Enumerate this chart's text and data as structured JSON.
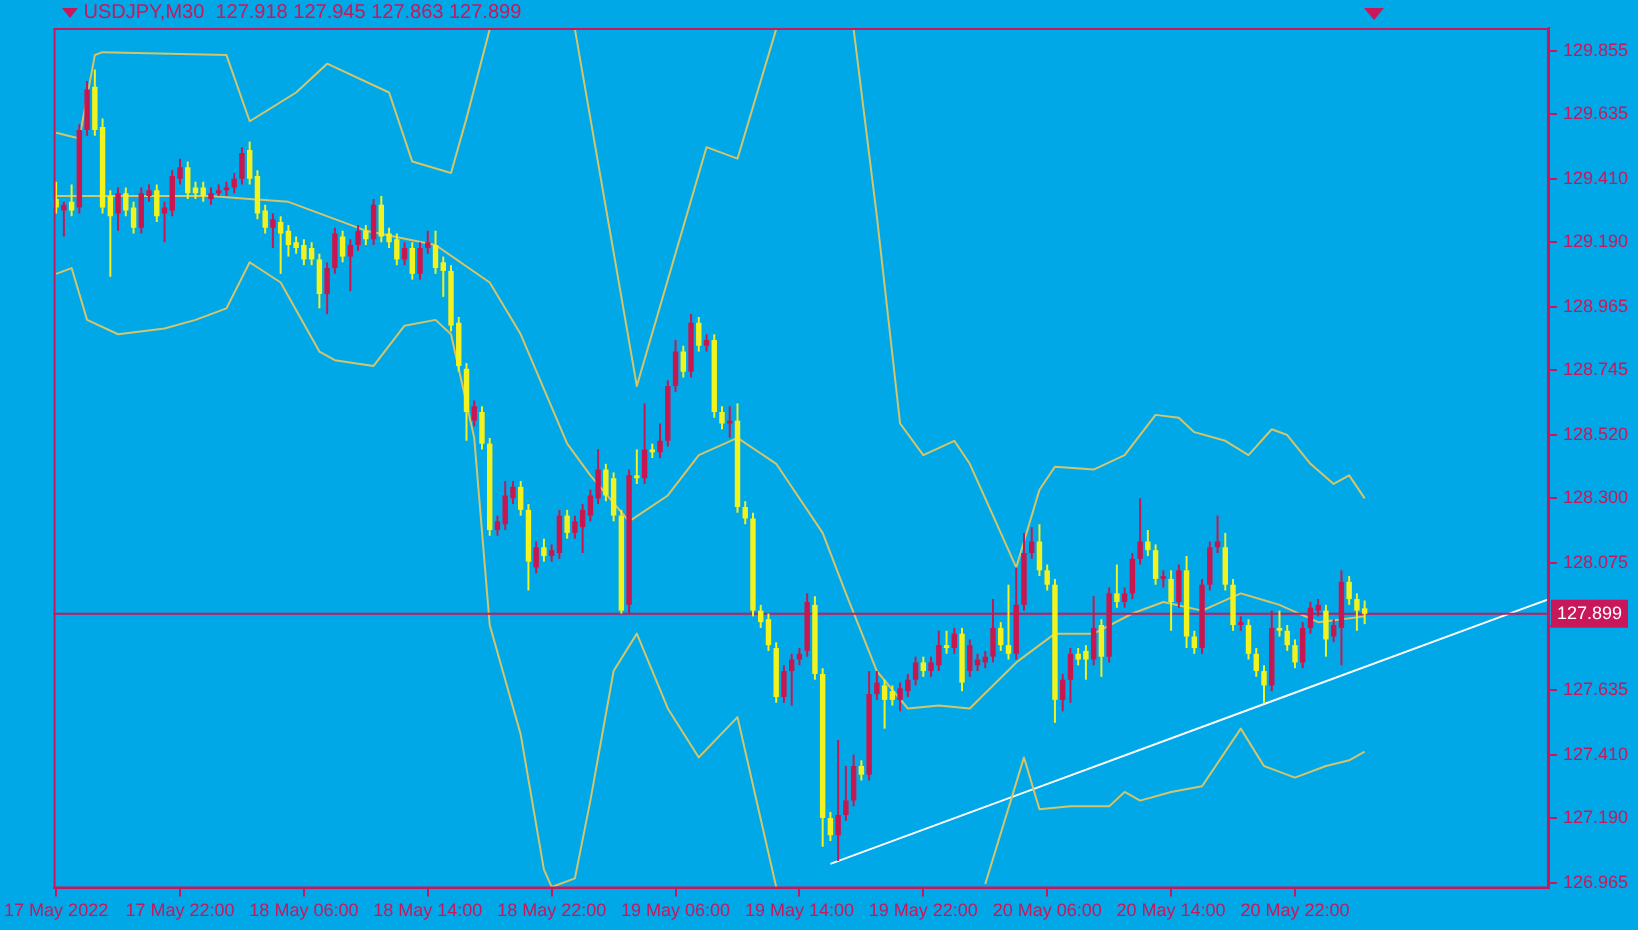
{
  "chart_data": {
    "type": "candlestick",
    "title": "USDJPY,M30  127.918 127.945 127.863 127.899",
    "x": [
      "2022-05-17T14:00",
      "2022-05-17T14:30",
      "2022-05-17T15:00",
      "2022-05-17T15:30",
      "2022-05-17T16:00",
      "2022-05-17T16:30",
      "2022-05-17T17:00",
      "2022-05-17T17:30",
      "2022-05-17T18:00",
      "2022-05-17T18:30",
      "2022-05-17T19:00",
      "2022-05-17T19:30",
      "2022-05-17T20:00",
      "2022-05-17T20:30",
      "2022-05-17T21:00",
      "2022-05-17T21:30",
      "2022-05-17T22:00",
      "2022-05-17T22:30",
      "2022-05-17T23:00",
      "2022-05-17T23:30",
      "2022-05-18T00:00",
      "2022-05-18T00:30",
      "2022-05-18T01:00",
      "2022-05-18T01:30",
      "2022-05-18T02:00",
      "2022-05-18T02:30",
      "2022-05-18T03:00",
      "2022-05-18T03:30",
      "2022-05-18T04:00",
      "2022-05-18T04:30",
      "2022-05-18T05:00",
      "2022-05-18T05:30",
      "2022-05-18T06:00",
      "2022-05-18T06:30",
      "2022-05-18T07:00",
      "2022-05-18T07:30",
      "2022-05-18T08:00",
      "2022-05-18T08:30",
      "2022-05-18T09:00",
      "2022-05-18T09:30",
      "2022-05-18T10:00",
      "2022-05-18T10:30",
      "2022-05-18T11:00",
      "2022-05-18T11:30",
      "2022-05-18T12:00",
      "2022-05-18T12:30",
      "2022-05-18T13:00",
      "2022-05-18T13:30",
      "2022-05-18T14:00",
      "2022-05-18T14:30",
      "2022-05-18T15:00",
      "2022-05-18T15:30",
      "2022-05-18T16:00",
      "2022-05-18T16:30",
      "2022-05-18T17:00",
      "2022-05-18T17:30",
      "2022-05-18T18:00",
      "2022-05-18T18:30",
      "2022-05-18T19:00",
      "2022-05-18T19:30",
      "2022-05-18T20:00",
      "2022-05-18T20:30",
      "2022-05-18T21:00",
      "2022-05-18T21:30",
      "2022-05-18T22:00",
      "2022-05-18T22:30",
      "2022-05-18T23:00",
      "2022-05-18T23:30",
      "2022-05-19T00:00",
      "2022-05-19T00:30",
      "2022-05-19T01:00",
      "2022-05-19T01:30",
      "2022-05-19T02:00",
      "2022-05-19T02:30",
      "2022-05-19T03:00",
      "2022-05-19T03:30",
      "2022-05-19T04:00",
      "2022-05-19T04:30",
      "2022-05-19T05:00",
      "2022-05-19T05:30",
      "2022-05-19T06:00",
      "2022-05-19T06:30",
      "2022-05-19T07:00",
      "2022-05-19T07:30",
      "2022-05-19T08:00",
      "2022-05-19T08:30",
      "2022-05-19T09:00",
      "2022-05-19T09:30",
      "2022-05-19T10:00",
      "2022-05-19T10:30",
      "2022-05-19T11:00",
      "2022-05-19T11:30",
      "2022-05-19T12:00",
      "2022-05-19T12:30",
      "2022-05-19T13:00",
      "2022-05-19T13:30",
      "2022-05-19T14:00",
      "2022-05-19T14:30",
      "2022-05-19T15:00",
      "2022-05-19T15:30",
      "2022-05-19T16:00",
      "2022-05-19T16:30",
      "2022-05-19T17:00",
      "2022-05-19T17:30",
      "2022-05-19T18:00",
      "2022-05-19T18:30",
      "2022-05-19T19:00",
      "2022-05-19T19:30",
      "2022-05-19T20:00",
      "2022-05-19T20:30",
      "2022-05-19T21:00",
      "2022-05-19T21:30",
      "2022-05-19T22:00",
      "2022-05-19T22:30",
      "2022-05-19T23:00",
      "2022-05-19T23:30",
      "2022-05-20T00:00",
      "2022-05-20T00:30",
      "2022-05-20T01:00",
      "2022-05-20T01:30",
      "2022-05-20T02:00",
      "2022-05-20T02:30",
      "2022-05-20T03:00",
      "2022-05-20T03:30",
      "2022-05-20T04:00",
      "2022-05-20T04:30",
      "2022-05-20T05:00",
      "2022-05-20T05:30",
      "2022-05-20T06:00",
      "2022-05-20T06:30",
      "2022-05-20T07:00",
      "2022-05-20T07:30",
      "2022-05-20T08:00",
      "2022-05-20T08:30",
      "2022-05-20T09:00",
      "2022-05-20T09:30",
      "2022-05-20T10:00",
      "2022-05-20T10:30",
      "2022-05-20T11:00",
      "2022-05-20T11:30",
      "2022-05-20T12:00",
      "2022-05-20T12:30",
      "2022-05-20T13:00",
      "2022-05-20T13:30",
      "2022-05-20T14:00",
      "2022-05-20T14:30",
      "2022-05-20T15:00",
      "2022-05-20T15:30",
      "2022-05-20T16:00",
      "2022-05-20T16:30",
      "2022-05-20T17:00",
      "2022-05-20T17:30",
      "2022-05-20T18:00",
      "2022-05-20T18:30",
      "2022-05-20T19:00",
      "2022-05-20T19:30",
      "2022-05-20T20:00",
      "2022-05-20T20:30",
      "2022-05-20T21:00",
      "2022-05-20T21:30",
      "2022-05-20T22:00",
      "2022-05-20T22:30",
      "2022-05-20T23:00",
      "2022-05-20T23:30",
      "2022-05-21T00:00",
      "2022-05-21T00:30",
      "2022-05-21T01:00",
      "2022-05-21T01:30",
      "2022-05-21T02:00",
      "2022-05-21T02:30"
    ],
    "ohlc": [
      [
        129.34,
        129.4,
        129.29,
        129.31
      ],
      [
        129.3,
        129.33,
        129.21,
        129.32
      ],
      [
        129.33,
        129.39,
        129.28,
        129.3
      ],
      [
        129.31,
        129.6,
        129.29,
        129.58
      ],
      [
        129.58,
        129.75,
        129.56,
        129.72
      ],
      [
        129.73,
        129.79,
        129.56,
        129.58
      ],
      [
        129.59,
        129.62,
        129.29,
        129.31
      ],
      [
        129.35,
        129.37,
        129.07,
        129.28
      ],
      [
        129.29,
        129.38,
        129.23,
        129.36
      ],
      [
        129.36,
        129.38,
        129.28,
        129.3
      ],
      [
        129.31,
        129.33,
        129.22,
        129.24
      ],
      [
        129.24,
        129.38,
        129.22,
        129.36
      ],
      [
        129.35,
        129.39,
        129.33,
        129.37
      ],
      [
        129.37,
        129.39,
        129.26,
        129.28
      ],
      [
        129.29,
        129.33,
        129.19,
        129.31
      ],
      [
        129.3,
        129.44,
        129.28,
        129.42
      ],
      [
        129.41,
        129.48,
        129.39,
        129.45
      ],
      [
        129.45,
        129.47,
        129.34,
        129.36
      ],
      [
        129.38,
        129.4,
        129.34,
        129.36
      ],
      [
        129.38,
        129.4,
        129.33,
        129.35
      ],
      [
        129.34,
        129.38,
        129.32,
        129.36
      ],
      [
        129.36,
        129.39,
        129.35,
        129.37
      ],
      [
        129.37,
        129.4,
        129.35,
        129.38
      ],
      [
        129.38,
        129.43,
        129.36,
        129.41
      ],
      [
        129.41,
        129.52,
        129.39,
        129.5
      ],
      [
        129.51,
        129.54,
        129.39,
        129.41
      ],
      [
        129.42,
        129.44,
        129.27,
        129.29
      ],
      [
        129.3,
        129.32,
        129.22,
        129.24
      ],
      [
        129.24,
        129.29,
        129.17,
        129.27
      ],
      [
        129.26,
        129.28,
        129.08,
        129.22
      ],
      [
        129.23,
        129.25,
        129.14,
        129.18
      ],
      [
        129.19,
        129.21,
        129.15,
        129.17
      ],
      [
        129.18,
        129.2,
        129.11,
        129.13
      ],
      [
        129.17,
        129.19,
        129.11,
        129.13
      ],
      [
        129.13,
        129.15,
        128.96,
        129.01
      ],
      [
        129.01,
        129.12,
        128.94,
        129.1
      ],
      [
        129.1,
        129.24,
        129.08,
        129.22
      ],
      [
        129.21,
        129.23,
        129.12,
        129.14
      ],
      [
        129.14,
        129.2,
        129.02,
        129.18
      ],
      [
        129.18,
        129.25,
        129.16,
        129.23
      ],
      [
        129.23,
        129.25,
        129.18,
        129.2
      ],
      [
        129.2,
        129.34,
        129.18,
        129.32
      ],
      [
        129.32,
        129.35,
        129.19,
        129.21
      ],
      [
        129.22,
        129.24,
        129.17,
        129.19
      ],
      [
        129.2,
        129.22,
        129.11,
        129.13
      ],
      [
        129.13,
        129.19,
        129.11,
        129.17
      ],
      [
        129.17,
        129.19,
        129.06,
        129.08
      ],
      [
        129.08,
        129.19,
        129.06,
        129.17
      ],
      [
        129.17,
        129.23,
        129.15,
        129.19
      ],
      [
        129.18,
        129.23,
        129.08,
        129.1
      ],
      [
        129.12,
        129.14,
        129.0,
        129.09
      ],
      [
        129.09,
        129.11,
        128.88,
        128.9
      ],
      [
        128.91,
        128.93,
        128.74,
        128.76
      ],
      [
        128.75,
        128.77,
        128.5,
        128.6
      ],
      [
        128.57,
        128.64,
        128.55,
        128.62
      ],
      [
        128.6,
        128.62,
        128.47,
        128.49
      ],
      [
        128.49,
        128.51,
        128.17,
        128.19
      ],
      [
        128.19,
        128.24,
        128.17,
        128.22
      ],
      [
        128.21,
        128.36,
        128.19,
        128.31
      ],
      [
        128.3,
        128.36,
        128.28,
        128.34
      ],
      [
        128.34,
        128.36,
        128.24,
        128.26
      ],
      [
        128.26,
        128.28,
        127.98,
        128.08
      ],
      [
        128.06,
        128.15,
        128.04,
        128.13
      ],
      [
        128.13,
        128.16,
        128.08,
        128.1
      ],
      [
        128.1,
        128.14,
        128.08,
        128.12
      ],
      [
        128.11,
        128.26,
        128.09,
        128.24
      ],
      [
        128.24,
        128.26,
        128.16,
        128.18
      ],
      [
        128.18,
        128.24,
        128.16,
        128.22
      ],
      [
        128.2,
        128.28,
        128.11,
        128.26
      ],
      [
        128.24,
        128.33,
        128.22,
        128.31
      ],
      [
        128.3,
        128.47,
        128.28,
        128.4
      ],
      [
        128.4,
        128.42,
        128.29,
        128.31
      ],
      [
        128.37,
        128.39,
        128.22,
        128.24
      ],
      [
        128.24,
        128.26,
        127.9,
        127.91
      ],
      [
        127.93,
        128.4,
        127.9,
        128.38
      ],
      [
        128.38,
        128.47,
        128.35,
        128.37
      ],
      [
        128.37,
        128.63,
        128.35,
        128.47
      ],
      [
        128.47,
        128.49,
        128.44,
        128.46
      ],
      [
        128.46,
        128.56,
        128.44,
        128.5
      ],
      [
        128.5,
        128.71,
        128.48,
        128.69
      ],
      [
        128.69,
        128.85,
        128.67,
        128.81
      ],
      [
        128.81,
        128.83,
        128.72,
        128.74
      ],
      [
        128.74,
        128.94,
        128.72,
        128.91
      ],
      [
        128.91,
        128.93,
        128.81,
        128.83
      ],
      [
        128.83,
        128.87,
        128.81,
        128.85
      ],
      [
        128.85,
        128.87,
        128.58,
        128.6
      ],
      [
        128.6,
        128.62,
        128.54,
        128.56
      ],
      [
        128.56,
        128.62,
        128.51,
        128.57
      ],
      [
        128.57,
        128.63,
        128.25,
        128.27
      ],
      [
        128.27,
        128.29,
        128.21,
        128.23
      ],
      [
        128.23,
        128.25,
        127.89,
        127.91
      ],
      [
        127.91,
        127.93,
        127.85,
        127.87
      ],
      [
        127.88,
        127.9,
        127.77,
        127.79
      ],
      [
        127.78,
        127.8,
        127.59,
        127.61
      ],
      [
        127.61,
        127.72,
        127.59,
        127.7
      ],
      [
        127.7,
        127.76,
        127.58,
        127.74
      ],
      [
        127.74,
        127.78,
        127.72,
        127.76
      ],
      [
        127.77,
        127.97,
        127.75,
        127.94
      ],
      [
        127.93,
        127.96,
        127.67,
        127.69
      ],
      [
        127.69,
        127.71,
        127.09,
        127.19
      ],
      [
        127.19,
        127.21,
        127.11,
        127.13
      ],
      [
        127.13,
        127.46,
        127.04,
        127.2
      ],
      [
        127.2,
        127.37,
        127.18,
        127.25
      ],
      [
        127.25,
        127.41,
        127.23,
        127.37
      ],
      [
        127.37,
        127.39,
        127.32,
        127.34
      ],
      [
        127.34,
        127.7,
        127.32,
        127.62
      ],
      [
        127.62,
        127.7,
        127.6,
        127.66
      ],
      [
        127.65,
        127.67,
        127.5,
        127.6
      ],
      [
        127.63,
        127.65,
        127.58,
        127.6
      ],
      [
        127.6,
        127.66,
        127.56,
        127.64
      ],
      [
        127.63,
        127.69,
        127.61,
        127.67
      ],
      [
        127.67,
        127.75,
        127.65,
        127.73
      ],
      [
        127.73,
        127.75,
        127.68,
        127.7
      ],
      [
        127.7,
        127.75,
        127.68,
        127.73
      ],
      [
        127.72,
        127.84,
        127.7,
        127.79
      ],
      [
        127.79,
        127.84,
        127.76,
        127.78
      ],
      [
        127.78,
        127.85,
        127.76,
        127.83
      ],
      [
        127.83,
        127.85,
        127.63,
        127.66
      ],
      [
        127.7,
        127.81,
        127.68,
        127.79
      ],
      [
        127.72,
        127.76,
        127.7,
        127.74
      ],
      [
        127.73,
        127.77,
        127.71,
        127.75
      ],
      [
        127.75,
        127.95,
        127.73,
        127.85
      ],
      [
        127.85,
        127.87,
        127.77,
        127.79
      ],
      [
        127.79,
        128.0,
        127.74,
        127.76
      ],
      [
        127.76,
        128.06,
        127.74,
        127.93
      ],
      [
        127.93,
        128.18,
        127.91,
        128.11
      ],
      [
        128.11,
        128.2,
        128.09,
        128.15
      ],
      [
        128.15,
        128.21,
        128.03,
        128.05
      ],
      [
        128.05,
        128.07,
        127.98,
        128.0
      ],
      [
        128.0,
        128.02,
        127.52,
        127.6
      ],
      [
        127.6,
        127.69,
        127.56,
        127.67
      ],
      [
        127.67,
        127.78,
        127.59,
        127.76
      ],
      [
        127.76,
        127.78,
        127.72,
        127.74
      ],
      [
        127.77,
        127.79,
        127.67,
        127.74
      ],
      [
        127.74,
        127.96,
        127.72,
        127.85
      ],
      [
        127.86,
        127.88,
        127.68,
        127.75
      ],
      [
        127.75,
        127.99,
        127.73,
        127.97
      ],
      [
        127.97,
        128.07,
        127.92,
        127.94
      ],
      [
        127.94,
        127.99,
        127.92,
        127.97
      ],
      [
        127.97,
        128.11,
        127.95,
        128.09
      ],
      [
        128.09,
        128.3,
        128.07,
        128.15
      ],
      [
        128.15,
        128.19,
        128.1,
        128.12
      ],
      [
        128.12,
        128.14,
        128.0,
        128.02
      ],
      [
        128.02,
        128.05,
        127.99,
        128.03
      ],
      [
        128.02,
        128.05,
        127.84,
        127.94
      ],
      [
        127.94,
        128.07,
        127.92,
        128.05
      ],
      [
        128.05,
        128.1,
        127.78,
        127.82
      ],
      [
        127.82,
        127.84,
        127.76,
        127.78
      ],
      [
        127.78,
        128.02,
        127.76,
        128.0
      ],
      [
        128.0,
        128.15,
        127.98,
        128.13
      ],
      [
        128.13,
        128.24,
        128.11,
        128.15
      ],
      [
        128.13,
        128.18,
        127.98,
        128.0
      ],
      [
        128.0,
        128.02,
        127.84,
        127.86
      ],
      [
        127.86,
        127.89,
        127.84,
        127.87
      ],
      [
        127.86,
        127.88,
        127.74,
        127.76
      ],
      [
        127.76,
        127.78,
        127.68,
        127.7
      ],
      [
        127.7,
        127.72,
        127.59,
        127.65
      ],
      [
        127.65,
        127.91,
        127.63,
        127.85
      ],
      [
        127.85,
        127.91,
        127.82,
        127.84
      ],
      [
        127.84,
        127.86,
        127.77,
        127.79
      ],
      [
        127.79,
        127.81,
        127.71,
        127.73
      ],
      [
        127.73,
        127.87,
        127.71,
        127.85
      ],
      [
        127.85,
        127.94,
        127.83,
        127.92
      ],
      [
        127.91,
        127.95,
        127.89,
        127.93
      ],
      [
        127.91,
        127.93,
        127.75,
        127.81
      ],
      [
        127.82,
        127.88,
        127.8,
        127.86
      ],
      [
        127.85,
        128.05,
        127.72,
        128.01
      ],
      [
        128.01,
        128.03,
        127.93,
        127.95
      ],
      [
        127.95,
        127.97,
        127.84,
        127.91
      ],
      [
        127.918,
        127.945,
        127.863,
        127.899
      ]
    ],
    "xlim": [
      "2022-05-17T13:50",
      "2022-05-21T14:24"
    ],
    "xticks": [
      {
        "value": "2022-05-17T14:00",
        "label": "17 May 2022"
      },
      {
        "value": "2022-05-17T22:00",
        "label": "17 May 22:00"
      },
      {
        "value": "2022-05-18T06:00",
        "label": "18 May 06:00"
      },
      {
        "value": "2022-05-18T14:00",
        "label": "18 May 14:00"
      },
      {
        "value": "2022-05-18T22:00",
        "label": "18 May 22:00"
      },
      {
        "value": "2022-05-19T06:00",
        "label": "19 May 06:00"
      },
      {
        "value": "2022-05-19T14:00",
        "label": "19 May 14:00"
      },
      {
        "value": "2022-05-19T22:00",
        "label": "19 May 22:00"
      },
      {
        "value": "2022-05-20T06:00",
        "label": "20 May 06:00"
      },
      {
        "value": "2022-05-20T14:00",
        "label": "20 May 14:00"
      },
      {
        "value": "2022-05-20T22:00",
        "label": "20 May 22:00"
      }
    ],
    "ylim": [
      126.945,
      129.934
    ],
    "yticks": [
      {
        "value": 126.965,
        "label": "126.965"
      },
      {
        "value": 127.19,
        "label": "127.190"
      },
      {
        "value": 127.41,
        "label": "127.410"
      },
      {
        "value": 127.635,
        "label": "127.635"
      },
      {
        "value": 127.855,
        "label": null
      },
      {
        "value": 128.075,
        "label": "128.075"
      },
      {
        "value": 128.3,
        "label": "128.300"
      },
      {
        "value": 128.52,
        "label": "128.520"
      },
      {
        "value": 128.745,
        "label": "128.745"
      },
      {
        "value": 128.965,
        "label": "128.965"
      },
      {
        "value": 129.19,
        "label": "129.190"
      },
      {
        "value": 129.41,
        "label": "129.410"
      },
      {
        "value": 129.635,
        "label": "129.635"
      },
      {
        "value": 129.855,
        "label": "129.855"
      }
    ],
    "grid": false,
    "ref_lines": [
      {
        "axis": "y",
        "value": 127.899,
        "label": "127.899",
        "color": "#c8175a"
      }
    ],
    "series": [
      {
        "type": "line",
        "color": "#d4c46a",
        "x": [
          "2022-05-17T14:00",
          "2022-05-17T19:00",
          "2022-05-18T00:00",
          "2022-05-18T05:00",
          "2022-05-18T10:00",
          "2022-05-18T14:30",
          "2022-05-18T18:00",
          "2022-05-18T20:00",
          "2022-05-18T23:00",
          "2022-05-19T00:30",
          "2022-05-19T03:00",
          "2022-05-19T05:30",
          "2022-05-19T07:30",
          "2022-05-19T10:00",
          "2022-05-19T12:30",
          "2022-05-19T15:30",
          "2022-05-19T17:00",
          "2022-05-19T19:00",
          "2022-05-19T21:00",
          "2022-05-19T23:00",
          "2022-05-20T01:00",
          "2022-05-20T04:00",
          "2022-05-20T06:30",
          "2022-05-20T09:00",
          "2022-05-20T11:30",
          "2022-05-20T13:30",
          "2022-05-20T16:00",
          "2022-05-20T18:30",
          "2022-05-20T21:00",
          "2022-05-20T23:30",
          "2022-05-21T02:30"
        ],
        "values": [
          129.35,
          129.35,
          129.35,
          129.33,
          129.23,
          129.18,
          129.05,
          128.87,
          128.49,
          128.38,
          128.22,
          128.31,
          128.45,
          128.51,
          128.42,
          128.18,
          127.97,
          127.7,
          127.57,
          127.58,
          127.57,
          127.73,
          127.83,
          127.83,
          127.9,
          127.94,
          127.91,
          127.97,
          127.93,
          127.87,
          127.89
        ]
      },
      {
        "type": "line",
        "color": "#d4c46a",
        "x": [
          "2022-05-17T14:00",
          "2022-05-17T15:30",
          "2022-05-17T16:30",
          "2022-05-17T17:00",
          "2022-05-18T01:00",
          "2022-05-18T02:30",
          "2022-05-18T05:30",
          "2022-05-18T07:30",
          "2022-05-18T11:30",
          "2022-05-18T13:00",
          "2022-05-18T15:30",
          "2022-05-18T16:30",
          "2022-05-18T18:00",
          "2022-05-18T20:30",
          "2022-05-18T23:30",
          "2022-05-19T03:30",
          "2022-05-19T08:00",
          "2022-05-19T10:00",
          "2022-05-19T12:30",
          "2022-05-19T15:00",
          "2022-05-19T17:30",
          "2022-05-19T19:00",
          "2022-05-19T20:30",
          "2022-05-19T22:00",
          "2022-05-20T00:00",
          "2022-05-20T01:00",
          "2022-05-20T04:00",
          "2022-05-20T05:30",
          "2022-05-20T06:30",
          "2022-05-20T09:00",
          "2022-05-20T11:00",
          "2022-05-20T13:00",
          "2022-05-20T14:30",
          "2022-05-20T15:30",
          "2022-05-20T17:30",
          "2022-05-20T19:00",
          "2022-05-20T20:30",
          "2022-05-20T21:30",
          "2022-05-20T23:00",
          "2022-05-21T00:30",
          "2022-05-21T01:30",
          "2022-05-21T02:30"
        ],
        "values": [
          129.57,
          129.55,
          129.84,
          129.85,
          129.84,
          129.61,
          129.71,
          129.81,
          129.71,
          129.47,
          129.43,
          129.62,
          129.93,
          null,
          129.93,
          128.69,
          129.52,
          129.48,
          129.93,
          null,
          129.93,
          129.28,
          128.56,
          128.45,
          128.5,
          128.42,
          128.06,
          128.33,
          128.41,
          128.4,
          128.45,
          128.59,
          128.58,
          128.53,
          128.5,
          128.45,
          128.54,
          128.52,
          128.42,
          128.35,
          128.38,
          128.3
        ]
      },
      {
        "type": "line",
        "color": "#d4c46a",
        "x": [
          "2022-05-17T14:00",
          "2022-05-17T15:00",
          "2022-05-17T16:00",
          "2022-05-17T18:00",
          "2022-05-17T21:00",
          "2022-05-17T23:00",
          "2022-05-18T01:00",
          "2022-05-18T02:30",
          "2022-05-18T04:30",
          "2022-05-18T07:00",
          "2022-05-18T08:00",
          "2022-05-18T10:30",
          "2022-05-18T12:30",
          "2022-05-18T14:30",
          "2022-05-18T15:30",
          "2022-05-18T17:00",
          "2022-05-18T18:00",
          "2022-05-18T20:00",
          "2022-05-18T21:30",
          "2022-05-18T22:00",
          "2022-05-18T23:30",
          "2022-05-19T00:30",
          "2022-05-19T02:00",
          "2022-05-19T03:30",
          "2022-05-19T05:30",
          "2022-05-19T07:30",
          "2022-05-19T10:00",
          "2022-05-19T12:30",
          "2022-05-19T19:00",
          "2022-05-20T02:00",
          "2022-05-20T04:30",
          "2022-05-20T05:30",
          "2022-05-20T07:30",
          "2022-05-20T10:00",
          "2022-05-20T11:00",
          "2022-05-20T12:00",
          "2022-05-20T14:00",
          "2022-05-20T16:00",
          "2022-05-20T18:30",
          "2022-05-20T20:00",
          "2022-05-20T22:00",
          "2022-05-21T00:00",
          "2022-05-21T01:30",
          "2022-05-21T02:30"
        ],
        "values": [
          129.08,
          129.1,
          128.92,
          128.87,
          128.89,
          128.92,
          128.96,
          129.12,
          129.05,
          128.81,
          128.78,
          128.76,
          128.9,
          128.92,
          128.87,
          128.51,
          127.86,
          127.48,
          127.01,
          126.95,
          126.98,
          127.25,
          127.7,
          127.83,
          127.57,
          127.4,
          127.54,
          126.95,
          null,
          126.96,
          127.4,
          127.22,
          127.23,
          127.23,
          127.28,
          127.25,
          127.28,
          127.3,
          127.5,
          127.37,
          127.33,
          127.37,
          127.39,
          127.42
        ]
      },
      {
        "type": "line",
        "color": "#ffffff",
        "x": [
          "2022-05-19T16:00",
          "2022-05-21T14:24"
        ],
        "values": [
          127.03,
          127.95
        ]
      }
    ]
  }
}
